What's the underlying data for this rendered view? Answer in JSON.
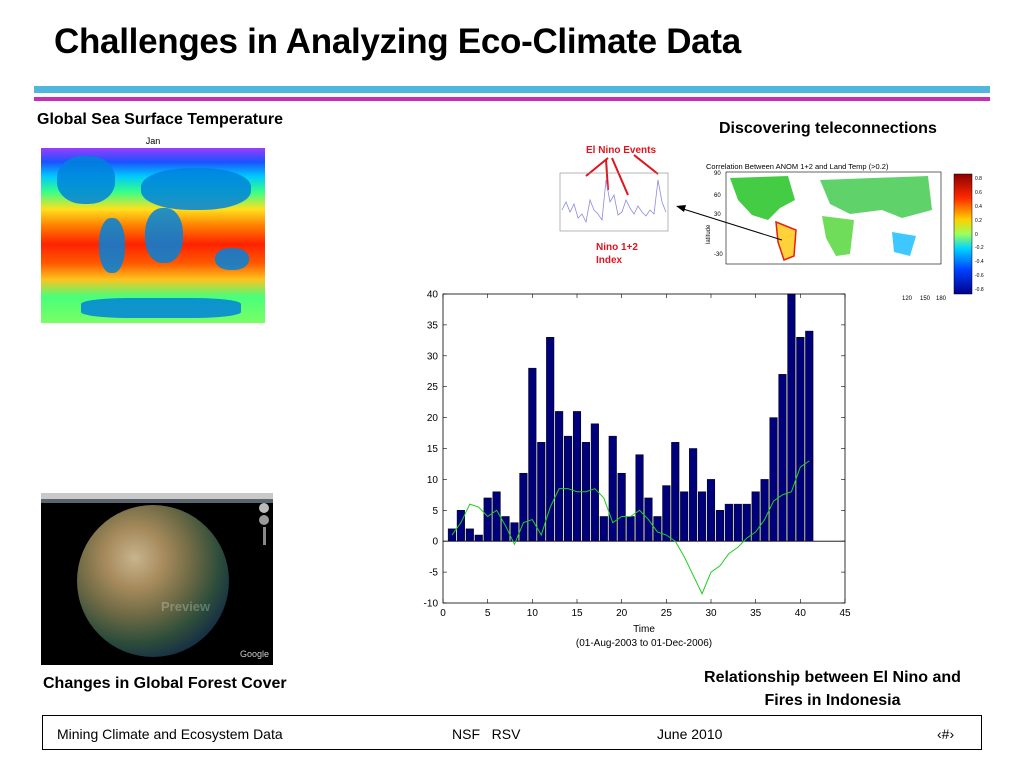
{
  "slide": {
    "title": "Challenges in Analyzing Eco-Climate Data",
    "sst_caption": "Global Sea Surface Temperature",
    "sst_month": "Jan",
    "teleconnections_caption": "Discovering teleconnections",
    "elnino_events_label": "El Nino Events",
    "nino_index_label": "Nino 1+2\nIndex",
    "correlation_title": "Correlation Between ANOM 1+2 and Land Temp (>0.2)",
    "latitude_label": "latitude",
    "relationship_caption": "Relationship between El Nino and Fires in Indonesia",
    "forest_caption": "Changes in Global Forest Cover",
    "globe_watermark": "Preview",
    "globe_logo": "Google"
  },
  "footer": {
    "left": "Mining Climate and Ecosystem Data",
    "middle": "NSF   RSV",
    "date": "June 2010",
    "page": "‹#›"
  },
  "colors": {
    "rule_top": "#4fb7de",
    "rule_bottom": "#c72fb6",
    "bars": "#00007a",
    "line": "#1fcf1f",
    "annotation": "#e0141e"
  },
  "chart_data": {
    "type": "bar",
    "xlabel": "Time",
    "xlabel2": "(01-Aug-2003 to 01-Dec-2006)",
    "xlim": [
      0,
      45
    ],
    "ylim": [
      -10,
      40
    ],
    "xticks": [
      0,
      5,
      10,
      15,
      20,
      25,
      30,
      35,
      40,
      45
    ],
    "yticks": [
      -10,
      -5,
      0,
      5,
      10,
      15,
      20,
      25,
      30,
      35,
      40
    ],
    "grid": false,
    "x": [
      1,
      2,
      3,
      4,
      5,
      6,
      7,
      8,
      9,
      10,
      11,
      12,
      13,
      14,
      15,
      16,
      17,
      18,
      19,
      20,
      21,
      22,
      23,
      24,
      25,
      26,
      27,
      28,
      29,
      30,
      31,
      32,
      33,
      34,
      35,
      36,
      37,
      38,
      39,
      40,
      41
    ],
    "series": [
      {
        "type": "bar",
        "values": [
          2,
          5,
          2,
          1,
          7,
          8,
          4,
          3,
          11,
          28,
          16,
          33,
          21,
          17,
          21,
          16,
          19,
          4,
          17,
          11,
          4,
          14,
          7,
          4,
          9,
          16,
          8,
          15,
          8,
          10,
          5,
          6,
          6,
          6,
          8,
          10,
          20,
          27,
          40,
          33,
          34
        ]
      },
      {
        "type": "line",
        "values": [
          1,
          3,
          6,
          5.5,
          4,
          5,
          2.5,
          -0.5,
          3,
          3.5,
          1,
          5.5,
          8.5,
          8.5,
          8,
          8,
          8.5,
          7,
          3,
          4,
          4,
          5,
          3.5,
          1.5,
          1,
          0,
          -2.5,
          -5.5,
          -8.5,
          -5,
          -4,
          -2,
          -1,
          0.5,
          1.5,
          3.5,
          6.5,
          7.5,
          8,
          12,
          13
        ]
      }
    ]
  }
}
